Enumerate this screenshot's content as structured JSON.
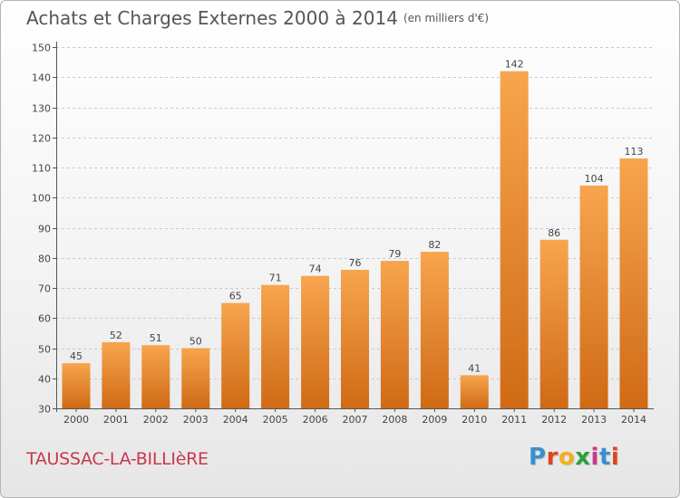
{
  "header": {
    "title": "Achats et Charges Externes 2000 à 2014",
    "unit": "(en milliers d'€)"
  },
  "footer": {
    "commune": "TAUSSAC-LA-BILLIèRE",
    "brand": {
      "letters": [
        "P",
        "r",
        "o",
        "x",
        "i",
        "t",
        "i"
      ],
      "colors": [
        "#3a8fd0",
        "#e0431f",
        "#f2b01e",
        "#2e9e3e",
        "#c43b8e",
        "#3a8fd0",
        "#e0431f"
      ]
    }
  },
  "colors": {
    "bar_top": "#f7a54e",
    "bar_bottom": "#d06a15",
    "grid": "#c9c9c9",
    "axis_text": "#444444"
  },
  "chart_data": {
    "type": "bar",
    "categories": [
      "2000",
      "2001",
      "2002",
      "2003",
      "2004",
      "2005",
      "2006",
      "2007",
      "2008",
      "2009",
      "2010",
      "2011",
      "2012",
      "2013",
      "2014"
    ],
    "values": [
      45,
      52,
      51,
      50,
      65,
      71,
      74,
      76,
      79,
      82,
      41,
      142,
      86,
      104,
      113
    ],
    "title": "Achats et Charges Externes 2000 à 2014",
    "xlabel": "",
    "ylabel": "",
    "ylim": [
      30,
      150
    ],
    "yticks": [
      30,
      40,
      50,
      60,
      70,
      80,
      90,
      100,
      110,
      120,
      130,
      140,
      150
    ],
    "grid": true,
    "data_labels": true
  }
}
